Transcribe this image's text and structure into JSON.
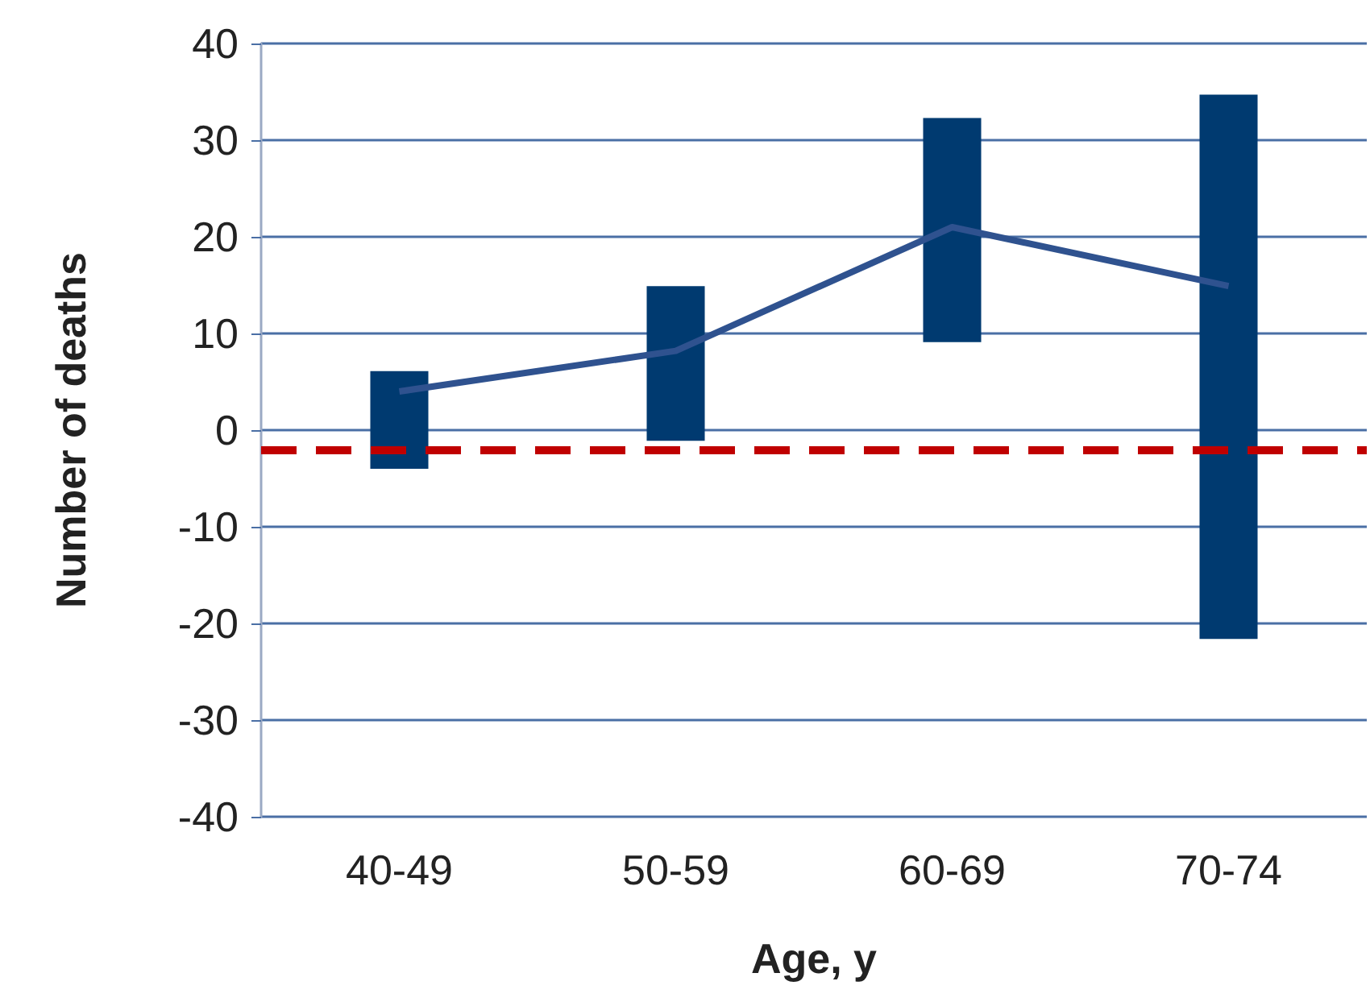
{
  "chart_data": {
    "type": "bar",
    "xlabel": "Age, y",
    "ylabel": "Number of deaths",
    "categories": [
      "40-49",
      "50-59",
      "60-69",
      "70-74"
    ],
    "series": [
      {
        "color": "#003a70",
        "base": [
          -4,
          -1.1,
          9.1,
          -21.6
        ],
        "values": [
          10.1,
          16,
          23.2,
          56.3
        ]
      },
      {
        "type": "line",
        "color": "#2f528f",
        "values": [
          4,
          8.2,
          21,
          14.9
        ],
        "marker": "none",
        "line_style": "solid"
      }
    ],
    "ylim": [
      -40,
      40
    ],
    "yticks": [
      -40,
      -30,
      -20,
      -10,
      0,
      10,
      20,
      30,
      40
    ],
    "grid": "y",
    "ref_lines": [
      {
        "axis": "y",
        "value": -2,
        "color": "#c00000",
        "line_style": "dashed"
      }
    ]
  }
}
